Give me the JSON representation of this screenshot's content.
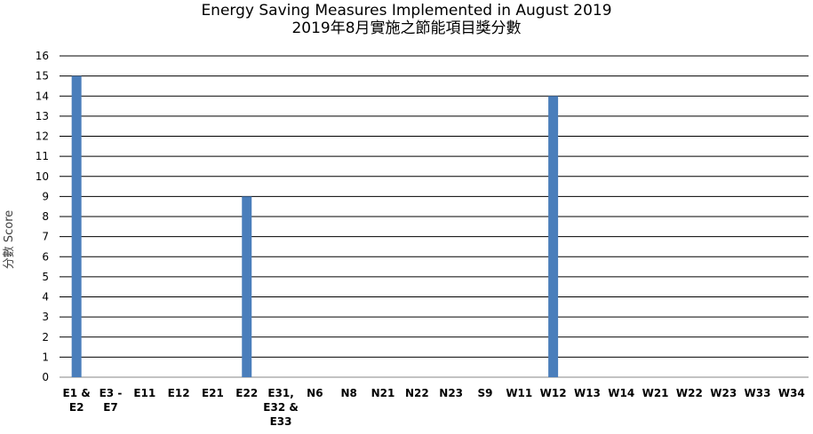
{
  "chart_data": {
    "type": "bar",
    "title": "Energy Saving Measures Implemented in August 2019",
    "subtitle": "2019年8月實施之節能項目獎分數",
    "xlabel": "",
    "ylabel": "分數 Score",
    "ylim": [
      0,
      16
    ],
    "yticks": [
      "0",
      "1",
      "2",
      "3",
      "4",
      "5",
      "6",
      "7",
      "8",
      "9",
      "10",
      "11",
      "12",
      "13",
      "14",
      "15",
      "16"
    ],
    "grid": true,
    "bar_color": "#4a7ebb",
    "categories": [
      [
        "E1 &",
        "E2"
      ],
      [
        "E3 -",
        "E7"
      ],
      [
        "E11"
      ],
      [
        "E12"
      ],
      [
        "E21"
      ],
      [
        "E22"
      ],
      [
        "E31,",
        "E32 &",
        "E33"
      ],
      [
        "N6"
      ],
      [
        "N8"
      ],
      [
        "N21"
      ],
      [
        "N22"
      ],
      [
        "N23"
      ],
      [
        "S9"
      ],
      [
        "W11"
      ],
      [
        "W12"
      ],
      [
        "W13"
      ],
      [
        "W14"
      ],
      [
        "W21"
      ],
      [
        "W22"
      ],
      [
        "W23"
      ],
      [
        "W33"
      ],
      [
        "W34"
      ]
    ],
    "values": [
      15,
      0,
      0,
      0,
      0,
      9,
      0,
      0,
      0,
      0,
      0,
      0,
      0,
      0,
      14,
      0,
      0,
      0,
      0,
      0,
      0,
      0
    ]
  }
}
